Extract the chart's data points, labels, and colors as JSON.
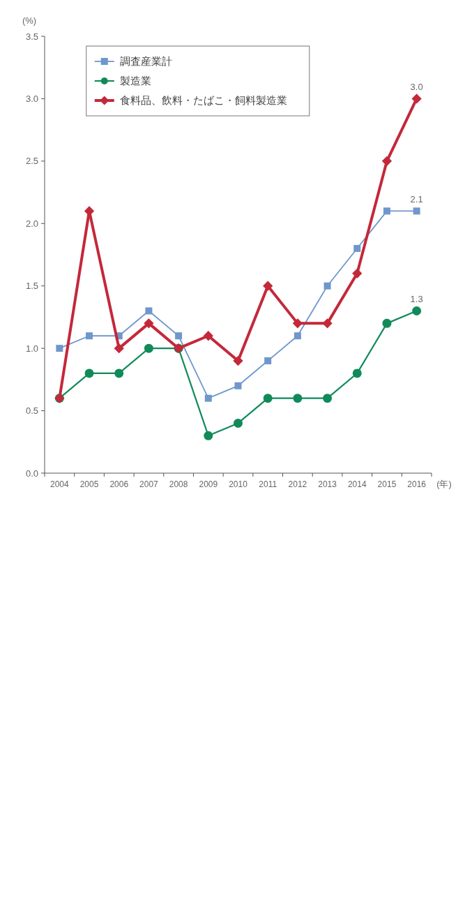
{
  "chart_data": {
    "type": "line",
    "xlabel": "(年)",
    "ylabel": "(%)",
    "categories": [
      "2004",
      "2005",
      "2006",
      "2007",
      "2008",
      "2009",
      "2010",
      "2011",
      "2012",
      "2013",
      "2014",
      "2015",
      "2016"
    ],
    "series": [
      {
        "name": "調査産業計",
        "color": "#6f97cc",
        "marker": "square",
        "values": [
          1.0,
          1.1,
          1.1,
          1.3,
          1.1,
          0.6,
          0.7,
          0.9,
          1.1,
          1.5,
          1.8,
          2.1,
          2.1
        ]
      },
      {
        "name": "製造業",
        "color": "#118a5a",
        "marker": "circle",
        "values": [
          0.6,
          0.8,
          0.8,
          1.0,
          1.0,
          0.3,
          0.4,
          0.6,
          0.6,
          0.6,
          0.8,
          1.2,
          1.3
        ]
      },
      {
        "name": "食料品、飲料・たばこ・飼料製造業",
        "color": "#c4283a",
        "marker": "diamond",
        "values": [
          0.6,
          2.1,
          1.0,
          1.2,
          1.0,
          1.1,
          0.9,
          1.5,
          1.2,
          1.2,
          1.6,
          2.5,
          3.0
        ]
      }
    ],
    "ylim": [
      0,
      3.5
    ],
    "yticks": [
      {
        "value": 0,
        "label": "0.0"
      },
      {
        "value": 0.5,
        "label": "0.5"
      },
      {
        "value": 1,
        "label": "1.0"
      },
      {
        "value": 1.5,
        "label": "1.5"
      },
      {
        "value": 2,
        "label": "2.0"
      },
      {
        "value": 2.5,
        "label": "2.5"
      },
      {
        "value": 3,
        "label": "3.0"
      },
      {
        "value": 3.5,
        "label": "3.5"
      }
    ],
    "annotations": [
      {
        "text": "3.0",
        "x": "2016",
        "y": 3.0
      },
      {
        "text": "2.1",
        "x": "2016",
        "y": 2.1
      },
      {
        "text": "1.3",
        "x": "2016",
        "y": 1.3
      }
    ],
    "grid": false,
    "legend": "top left"
  }
}
